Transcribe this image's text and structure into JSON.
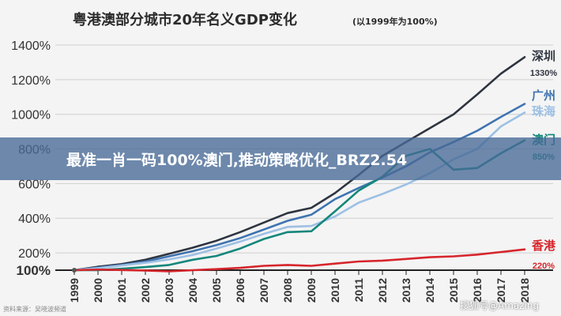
{
  "chart_data": {
    "type": "line",
    "title": "粤港澳部分城市20年名义GDP变化",
    "subtitle": "(以1999年为100%)",
    "xlabel": "",
    "ylabel": "",
    "x": [
      "1999",
      "2000",
      "2001",
      "2002",
      "2003",
      "2004",
      "2005",
      "2006",
      "2007",
      "2008",
      "2009",
      "2010",
      "2011",
      "2012",
      "2013",
      "2014",
      "2015",
      "2016",
      "2017",
      "2018"
    ],
    "ylim": [
      0,
      1400
    ],
    "yticks": [
      {
        "value": 1400,
        "label": "1400%"
      },
      {
        "value": 1200,
        "label": "1200%"
      },
      {
        "value": 1000,
        "label": "1000%"
      },
      {
        "value": 800,
        "label": "800%"
      },
      {
        "value": 600,
        "label": "600%"
      },
      {
        "value": 400,
        "label": "400%"
      },
      {
        "value": 200,
        "label": "200%"
      },
      {
        "value": 100,
        "label": "100%"
      }
    ],
    "grid": true,
    "series": [
      {
        "name": "深圳",
        "label": "1330%",
        "color": "#2e3440",
        "values": [
          100,
          120,
          135,
          160,
          195,
          230,
          270,
          320,
          375,
          430,
          460,
          545,
          650,
          760,
          840,
          920,
          1000,
          1115,
          1235,
          1330
        ]
      },
      {
        "name": "广州",
        "label": "",
        "color": "#3f74b0",
        "values": [
          100,
          115,
          130,
          150,
          180,
          210,
          245,
          285,
          335,
          385,
          420,
          510,
          575,
          635,
          700,
          780,
          840,
          905,
          985,
          1060
        ]
      },
      {
        "name": "珠海",
        "label": "",
        "color": "#9dc0e4",
        "values": [
          100,
          112,
          127,
          143,
          162,
          188,
          225,
          265,
          310,
          350,
          355,
          410,
          490,
          540,
          595,
          660,
          740,
          800,
          930,
          1010
        ]
      },
      {
        "name": "澳门",
        "label": "850%",
        "color": "#13877a",
        "values": [
          100,
          100,
          108,
          118,
          130,
          160,
          182,
          225,
          280,
          320,
          325,
          440,
          560,
          640,
          760,
          800,
          680,
          690,
          775,
          850
        ]
      },
      {
        "name": "香港",
        "label": "220%",
        "color": "#d6252b",
        "values": [
          100,
          103,
          101,
          98,
          93,
          100,
          106,
          113,
          125,
          130,
          125,
          138,
          150,
          155,
          165,
          175,
          180,
          190,
          205,
          220
        ]
      }
    ]
  },
  "banner": {
    "text": "最准一肖一码100%澳门,推动策略优化_BRZ2.54"
  },
  "source": "资料来源：吴晓波频道",
  "watermark": "搜狐号@Amazing"
}
